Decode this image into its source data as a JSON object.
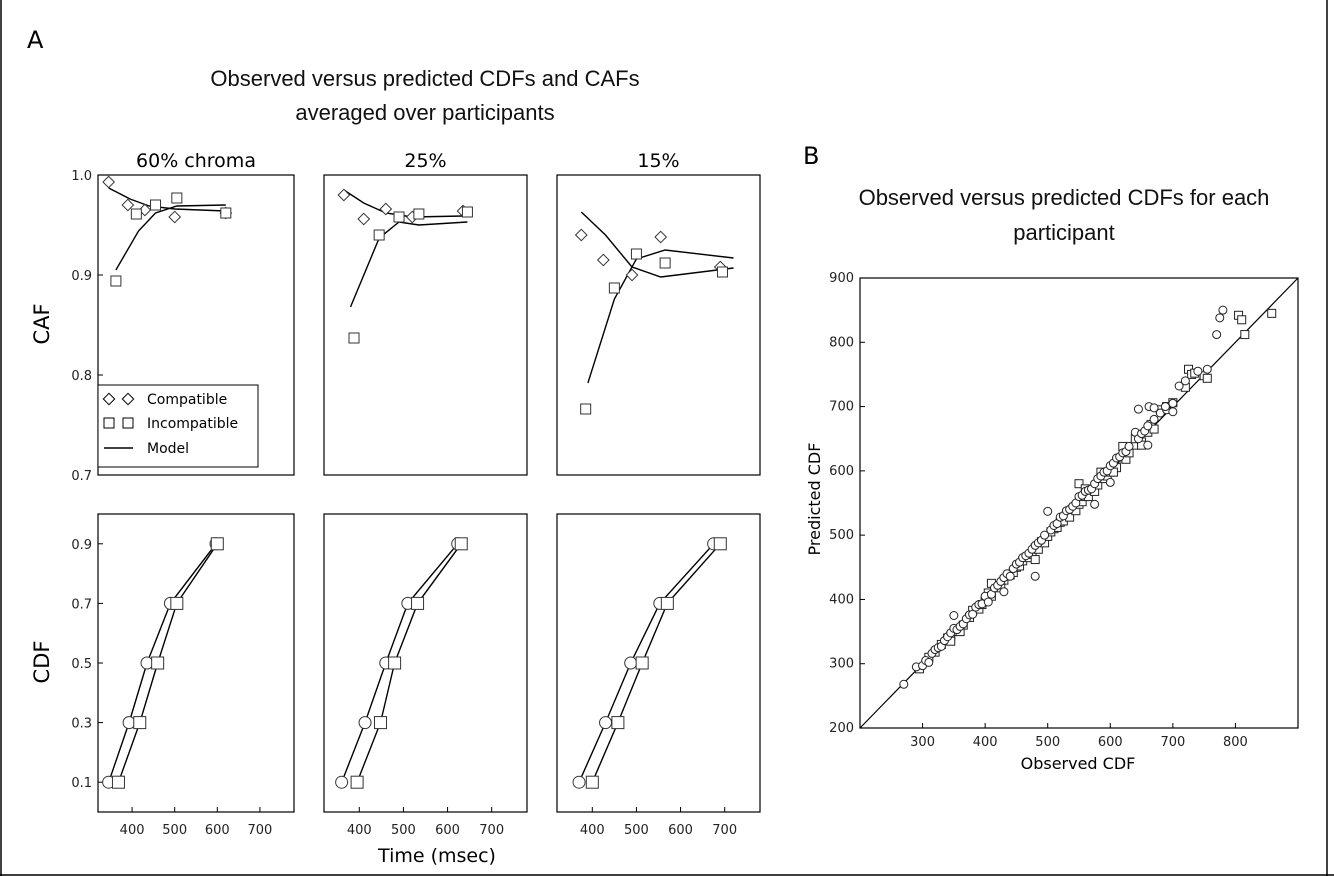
{
  "panel_a": {
    "label": "A",
    "title_line1": "Observed versus predicted CDFs and CAFs",
    "title_line2": "averaged over participants",
    "caf_ylabel": "CAF",
    "cdf_ylabel": "CDF",
    "xlabel": "Time (msec)",
    "legend": {
      "compatible": "Compatible",
      "incompatible": "Incompatible",
      "model": "Model"
    }
  },
  "panel_b": {
    "label": "B",
    "title_line1": "Observed versus predicted CDFs for each",
    "title_line2": "participant",
    "xlabel": "Observed CDF",
    "ylabel": "Predicted CDF"
  },
  "chart_data": [
    {
      "type": "line",
      "title": "60% chroma",
      "ylabel": "CAF",
      "xlim": [
        320,
        780
      ],
      "ylim": [
        0.7,
        1.0
      ],
      "xticks": [],
      "yticks": [
        0.7,
        0.8,
        0.9,
        1.0
      ],
      "observed_compatible": [
        [
          345,
          0.993
        ],
        [
          390,
          0.97
        ],
        [
          430,
          0.965
        ],
        [
          500,
          0.958
        ],
        [
          620,
          0.962
        ]
      ],
      "observed_incompatible": [
        [
          362,
          0.894
        ],
        [
          410,
          0.961
        ],
        [
          455,
          0.97
        ],
        [
          505,
          0.977
        ],
        [
          620,
          0.962
        ]
      ],
      "model_compatible": [
        [
          345,
          0.987
        ],
        [
          395,
          0.976
        ],
        [
          440,
          0.969
        ],
        [
          500,
          0.966
        ],
        [
          620,
          0.964
        ]
      ],
      "model_incompatible": [
        [
          362,
          0.905
        ],
        [
          415,
          0.944
        ],
        [
          455,
          0.962
        ],
        [
          505,
          0.969
        ],
        [
          620,
          0.97
        ]
      ]
    },
    {
      "type": "line",
      "title": "25%",
      "xlim": [
        320,
        780
      ],
      "ylim": [
        0.7,
        1.0
      ],
      "xticks": [],
      "yticks": [],
      "observed_compatible": [
        [
          365,
          0.98
        ],
        [
          410,
          0.956
        ],
        [
          460,
          0.966
        ],
        [
          520,
          0.958
        ],
        [
          635,
          0.964
        ]
      ],
      "observed_incompatible": [
        [
          388,
          0.837
        ],
        [
          445,
          0.94
        ],
        [
          490,
          0.958
        ],
        [
          535,
          0.961
        ],
        [
          645,
          0.963
        ]
      ],
      "model_compatible": [
        [
          365,
          0.985
        ],
        [
          410,
          0.972
        ],
        [
          460,
          0.962
        ],
        [
          520,
          0.958
        ],
        [
          635,
          0.959
        ]
      ],
      "model_incompatible": [
        [
          380,
          0.868
        ],
        [
          445,
          0.937
        ],
        [
          490,
          0.953
        ],
        [
          535,
          0.95
        ],
        [
          645,
          0.953
        ]
      ]
    },
    {
      "type": "line",
      "title": "15%",
      "xlim": [
        320,
        780
      ],
      "ylim": [
        0.7,
        1.0
      ],
      "xticks": [],
      "yticks": [],
      "observed_compatible": [
        [
          375,
          0.94
        ],
        [
          425,
          0.915
        ],
        [
          490,
          0.9
        ],
        [
          555,
          0.938
        ],
        [
          690,
          0.908
        ]
      ],
      "observed_incompatible": [
        [
          385,
          0.766
        ],
        [
          450,
          0.887
        ],
        [
          500,
          0.921
        ],
        [
          565,
          0.912
        ],
        [
          695,
          0.903
        ]
      ],
      "model_compatible": [
        [
          375,
          0.963
        ],
        [
          430,
          0.94
        ],
        [
          490,
          0.908
        ],
        [
          555,
          0.898
        ],
        [
          720,
          0.907
        ]
      ],
      "model_incompatible": [
        [
          390,
          0.792
        ],
        [
          450,
          0.876
        ],
        [
          500,
          0.916
        ],
        [
          565,
          0.925
        ],
        [
          720,
          0.917
        ]
      ]
    },
    {
      "type": "line",
      "ylabel": "CDF",
      "xlim": [
        320,
        780
      ],
      "ylim": [
        0.0,
        1.0
      ],
      "xticks": [
        400,
        500,
        600,
        700
      ],
      "yticks": [
        0.1,
        0.3,
        0.5,
        0.7,
        0.9
      ],
      "observed_compatible": [
        [
          345,
          0.1
        ],
        [
          393,
          0.3
        ],
        [
          435,
          0.5
        ],
        [
          490,
          0.7
        ],
        [
          597,
          0.9
        ]
      ],
      "observed_incompatible": [
        [
          368,
          0.1
        ],
        [
          418,
          0.3
        ],
        [
          460,
          0.5
        ],
        [
          505,
          0.7
        ],
        [
          600,
          0.9
        ]
      ],
      "model_compatible": [
        [
          345,
          0.1
        ],
        [
          393,
          0.3
        ],
        [
          435,
          0.5
        ],
        [
          490,
          0.7
        ],
        [
          597,
          0.9
        ]
      ],
      "model_incompatible": [
        [
          368,
          0.1
        ],
        [
          418,
          0.3
        ],
        [
          460,
          0.5
        ],
        [
          505,
          0.7
        ],
        [
          600,
          0.9
        ]
      ]
    },
    {
      "type": "line",
      "xlim": [
        320,
        780
      ],
      "ylim": [
        0.0,
        1.0
      ],
      "xticks": [
        400,
        500,
        600,
        700
      ],
      "yticks": [],
      "observed_compatible": [
        [
          360,
          0.1
        ],
        [
          413,
          0.3
        ],
        [
          460,
          0.5
        ],
        [
          510,
          0.7
        ],
        [
          623,
          0.9
        ]
      ],
      "observed_incompatible": [
        [
          395,
          0.1
        ],
        [
          448,
          0.3
        ],
        [
          480,
          0.5
        ],
        [
          532,
          0.7
        ],
        [
          631,
          0.9
        ]
      ],
      "model_compatible": [
        [
          360,
          0.1
        ],
        [
          413,
          0.3
        ],
        [
          460,
          0.5
        ],
        [
          510,
          0.7
        ],
        [
          623,
          0.9
        ]
      ],
      "model_incompatible": [
        [
          395,
          0.1
        ],
        [
          448,
          0.3
        ],
        [
          480,
          0.5
        ],
        [
          532,
          0.7
        ],
        [
          631,
          0.9
        ]
      ]
    },
    {
      "type": "line",
      "xlim": [
        320,
        780
      ],
      "ylim": [
        0.0,
        1.0
      ],
      "xticks": [
        400,
        500,
        600,
        700
      ],
      "yticks": [],
      "observed_compatible": [
        [
          370,
          0.1
        ],
        [
          430,
          0.3
        ],
        [
          487,
          0.5
        ],
        [
          553,
          0.7
        ],
        [
          675,
          0.9
        ]
      ],
      "observed_incompatible": [
        [
          400,
          0.1
        ],
        [
          458,
          0.3
        ],
        [
          513,
          0.5
        ],
        [
          570,
          0.7
        ],
        [
          690,
          0.9
        ]
      ],
      "model_compatible": [
        [
          370,
          0.1
        ],
        [
          430,
          0.3
        ],
        [
          487,
          0.5
        ],
        [
          553,
          0.7
        ],
        [
          675,
          0.9
        ]
      ],
      "model_incompatible": [
        [
          400,
          0.1
        ],
        [
          458,
          0.3
        ],
        [
          513,
          0.5
        ],
        [
          570,
          0.7
        ],
        [
          690,
          0.9
        ]
      ]
    },
    {
      "type": "scatter",
      "xlabel": "Observed CDF",
      "ylabel": "Predicted CDF",
      "xlim": [
        200,
        900
      ],
      "ylim": [
        200,
        900
      ],
      "xticks": [
        300,
        400,
        500,
        600,
        700,
        800
      ],
      "yticks": [
        200,
        300,
        400,
        500,
        600,
        700,
        800,
        900
      ],
      "identity_line": true,
      "compatible_points": [
        [
          270,
          268
        ],
        [
          290,
          295
        ],
        [
          300,
          297
        ],
        [
          305,
          305
        ],
        [
          310,
          302
        ],
        [
          315,
          316
        ],
        [
          320,
          322
        ],
        [
          325,
          325
        ],
        [
          330,
          327
        ],
        [
          335,
          336
        ],
        [
          340,
          342
        ],
        [
          345,
          348
        ],
        [
          350,
          355
        ],
        [
          350,
          375
        ],
        [
          355,
          353
        ],
        [
          360,
          358
        ],
        [
          365,
          362
        ],
        [
          370,
          370
        ],
        [
          375,
          376
        ],
        [
          380,
          377
        ],
        [
          385,
          388
        ],
        [
          390,
          392
        ],
        [
          395,
          393
        ],
        [
          400,
          405
        ],
        [
          405,
          396
        ],
        [
          410,
          408
        ],
        [
          415,
          418
        ],
        [
          420,
          422
        ],
        [
          425,
          428
        ],
        [
          430,
          434
        ],
        [
          435,
          440
        ],
        [
          440,
          436
        ],
        [
          445,
          448
        ],
        [
          450,
          455
        ],
        [
          455,
          458
        ],
        [
          460,
          465
        ],
        [
          465,
          468
        ],
        [
          470,
          472
        ],
        [
          475,
          478
        ],
        [
          480,
          484
        ],
        [
          480,
          436
        ],
        [
          485,
          488
        ],
        [
          490,
          492
        ],
        [
          495,
          500
        ],
        [
          500,
          537
        ],
        [
          505,
          508
        ],
        [
          510,
          515
        ],
        [
          515,
          518
        ],
        [
          520,
          528
        ],
        [
          525,
          530
        ],
        [
          530,
          538
        ],
        [
          535,
          540
        ],
        [
          540,
          545
        ],
        [
          545,
          550
        ],
        [
          550,
          560
        ],
        [
          555,
          562
        ],
        [
          560,
          568
        ],
        [
          565,
          570
        ],
        [
          570,
          572
        ],
        [
          575,
          580
        ],
        [
          580,
          588
        ],
        [
          585,
          592
        ],
        [
          590,
          598
        ],
        [
          595,
          600
        ],
        [
          600,
          608
        ],
        [
          605,
          612
        ],
        [
          610,
          620
        ],
        [
          615,
          622
        ],
        [
          620,
          628
        ],
        [
          625,
          630
        ],
        [
          630,
          638
        ],
        [
          640,
          660
        ],
        [
          645,
          650
        ],
        [
          650,
          658
        ],
        [
          655,
          662
        ],
        [
          660,
          670
        ],
        [
          670,
          680
        ],
        [
          680,
          690
        ],
        [
          690,
          695
        ],
        [
          700,
          705
        ],
        [
          645,
          696
        ],
        [
          662,
          700
        ],
        [
          710,
          732
        ],
        [
          720,
          740
        ],
        [
          740,
          755
        ],
        [
          755,
          758
        ],
        [
          770,
          812
        ],
        [
          775,
          838
        ],
        [
          780,
          850
        ],
        [
          660,
          640
        ],
        [
          670,
          698
        ],
        [
          688,
          700
        ],
        [
          700,
          692
        ],
        [
          600,
          582
        ],
        [
          575,
          548
        ],
        [
          430,
          412
        ]
      ],
      "incompatible_points": [
        [
          295,
          292
        ],
        [
          310,
          310
        ],
        [
          320,
          318
        ],
        [
          330,
          330
        ],
        [
          340,
          340
        ],
        [
          345,
          343
        ],
        [
          355,
          350
        ],
        [
          365,
          360
        ],
        [
          375,
          372
        ],
        [
          380,
          383
        ],
        [
          390,
          385
        ],
        [
          395,
          392
        ],
        [
          400,
          398
        ],
        [
          405,
          410
        ],
        [
          410,
          405
        ],
        [
          420,
          420
        ],
        [
          425,
          418
        ],
        [
          430,
          430
        ],
        [
          440,
          438
        ],
        [
          445,
          442
        ],
        [
          450,
          450
        ],
        [
          455,
          452
        ],
        [
          460,
          460
        ],
        [
          470,
          465
        ],
        [
          475,
          470
        ],
        [
          480,
          480
        ],
        [
          485,
          478
        ],
        [
          490,
          490
        ],
        [
          495,
          488
        ],
        [
          500,
          498
        ],
        [
          505,
          505
        ],
        [
          510,
          510
        ],
        [
          515,
          512
        ],
        [
          520,
          520
        ],
        [
          525,
          522
        ],
        [
          530,
          532
        ],
        [
          535,
          528
        ],
        [
          540,
          540
        ],
        [
          545,
          538
        ],
        [
          550,
          548
        ],
        [
          555,
          552
        ],
        [
          560,
          560
        ],
        [
          565,
          560
        ],
        [
          570,
          570
        ],
        [
          575,
          568
        ],
        [
          580,
          578
        ],
        [
          590,
          588
        ],
        [
          595,
          592
        ],
        [
          600,
          598
        ],
        [
          610,
          605
        ],
        [
          620,
          620
        ],
        [
          625,
          618
        ],
        [
          630,
          628
        ],
        [
          640,
          640
        ],
        [
          650,
          645
        ],
        [
          660,
          660
        ],
        [
          665,
          672
        ],
        [
          670,
          665
        ],
        [
          680,
          695
        ],
        [
          690,
          700
        ],
        [
          700,
          706
        ],
        [
          720,
          730
        ],
        [
          725,
          758
        ],
        [
          730,
          750
        ],
        [
          735,
          752
        ],
        [
          750,
          748
        ],
        [
          755,
          744
        ],
        [
          805,
          842
        ],
        [
          810,
          835
        ],
        [
          815,
          812
        ],
        [
          858,
          845
        ],
        [
          550,
          580
        ],
        [
          560,
          572
        ],
        [
          585,
          598
        ],
        [
          605,
          598
        ],
        [
          620,
          638
        ],
        [
          640,
          650
        ],
        [
          650,
          640
        ],
        [
          480,
          462
        ],
        [
          410,
          425
        ],
        [
          360,
          350
        ],
        [
          345,
          335
        ]
      ]
    }
  ]
}
